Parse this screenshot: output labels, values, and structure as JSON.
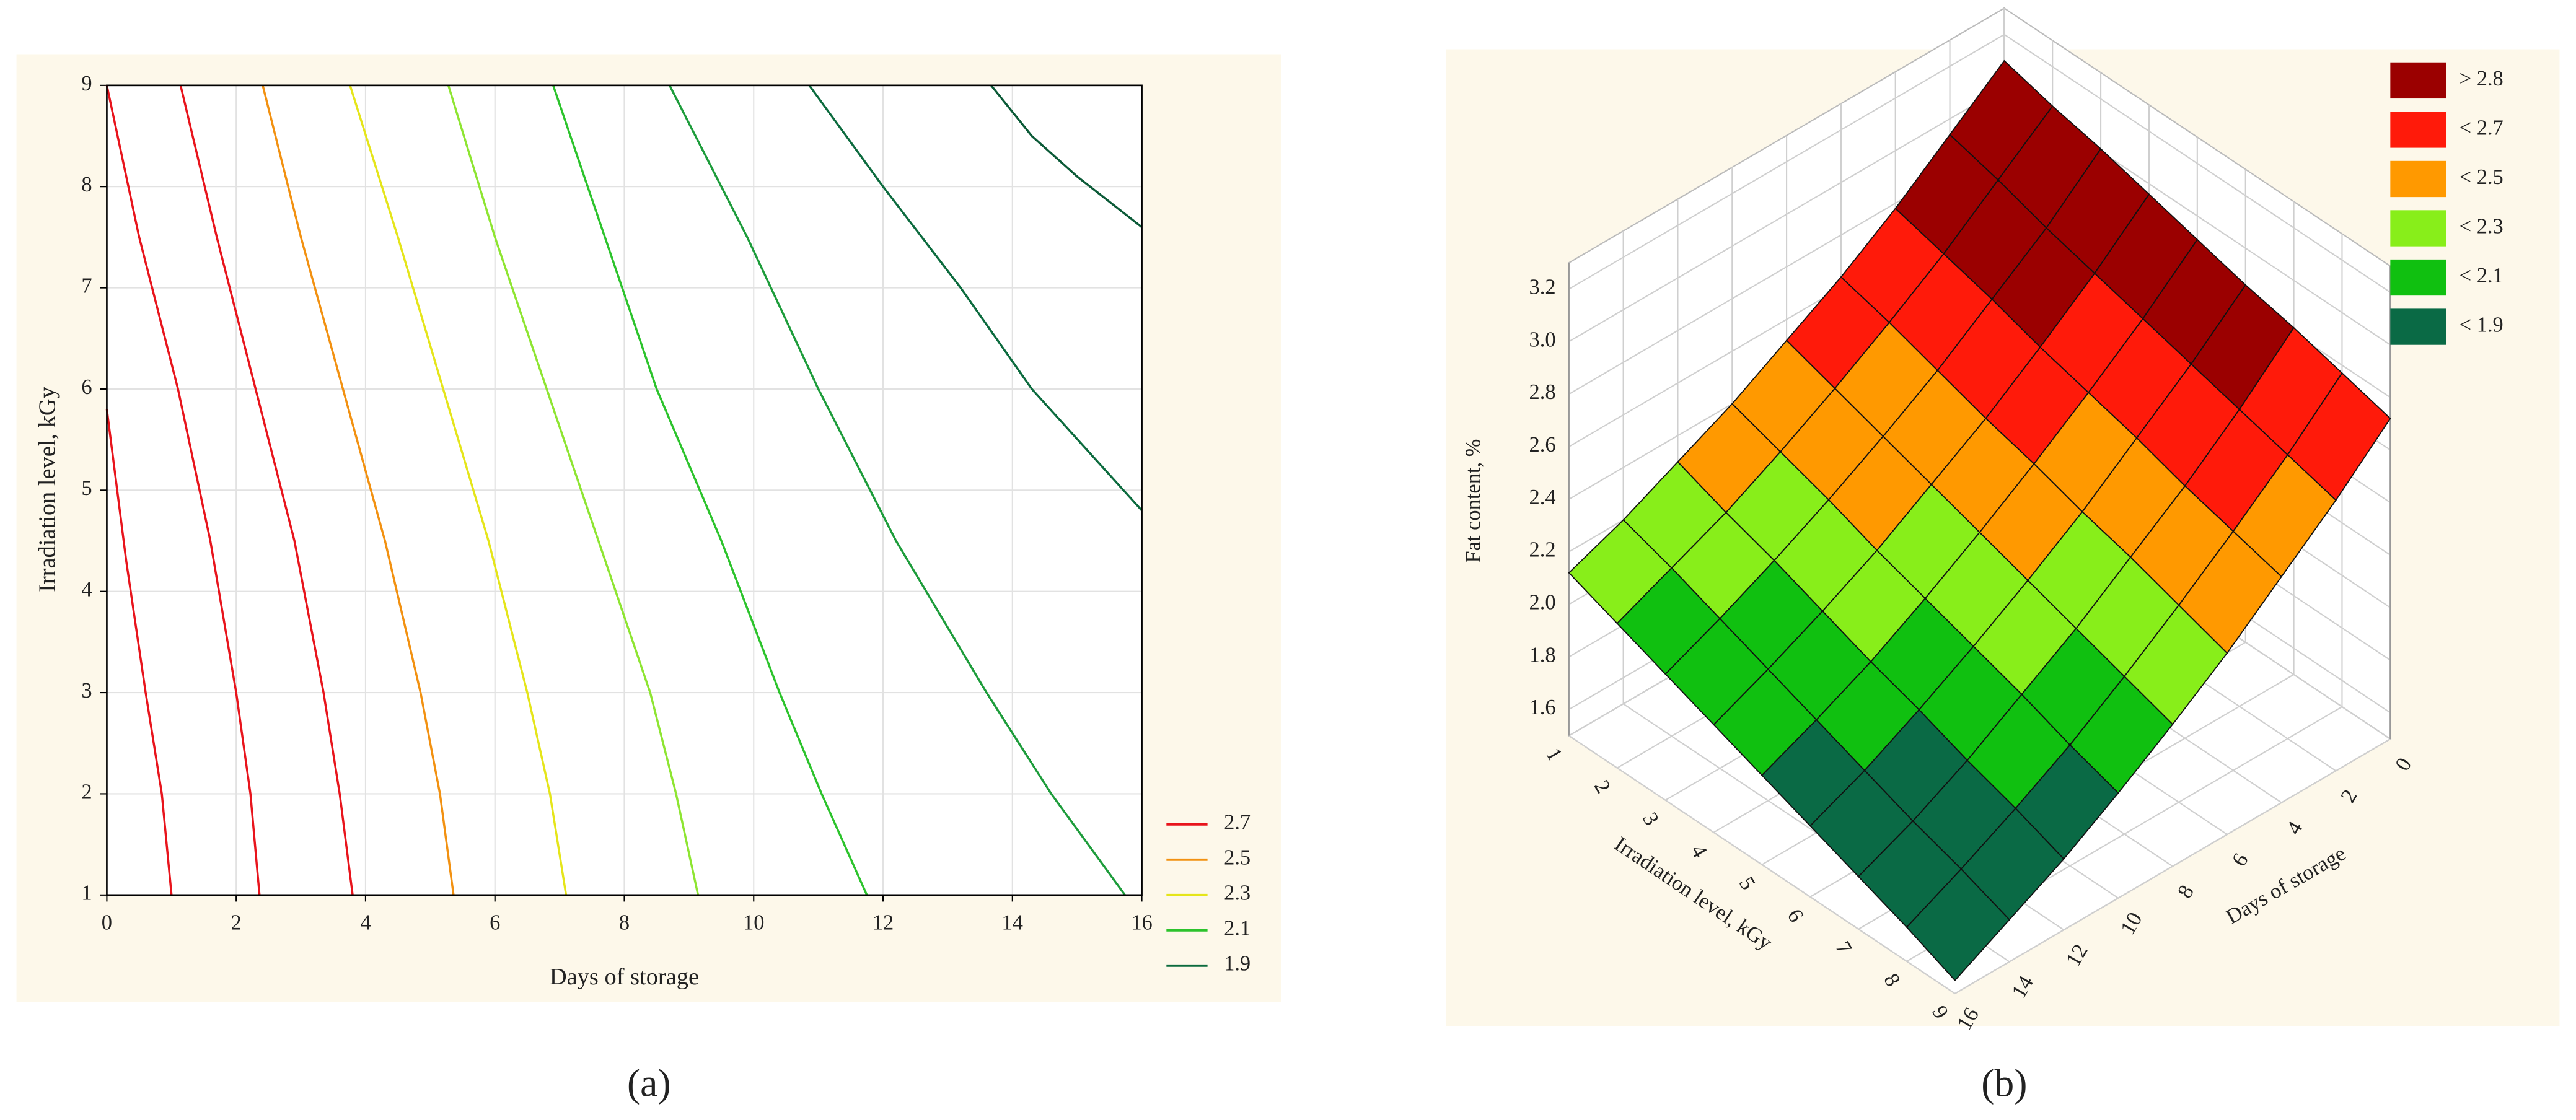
{
  "chart_data": [
    {
      "type": "contour",
      "label": "(a)",
      "xlabel": "Days of storage",
      "ylabel": "Irradiation level, kGy",
      "xlim": [
        0,
        16
      ],
      "ylim": [
        1,
        9
      ],
      "xticks": [
        0,
        2,
        4,
        6,
        8,
        10,
        12,
        14,
        16
      ],
      "yticks": [
        1,
        2,
        3,
        4,
        5,
        6,
        7,
        8,
        9
      ],
      "grid": true,
      "contours": [
        {
          "color": "#e8141c",
          "x": [
            0,
            0.3,
            0.6,
            0.85,
            1.0
          ],
          "y": [
            5.8,
            4.3,
            3,
            2,
            1
          ]
        },
        {
          "color": "#e8141c",
          "x": [
            0,
            0.5,
            1.1,
            1.6,
            2.0,
            2.22,
            2.36
          ],
          "y": [
            9,
            7.5,
            6,
            4.5,
            3,
            2,
            1
          ]
        },
        {
          "color": "#e8141c",
          "x": [
            1.14,
            1.7,
            2.3,
            2.9,
            3.35,
            3.6,
            3.8
          ],
          "y": [
            9,
            7.5,
            6,
            4.5,
            3,
            2,
            1
          ]
        },
        {
          "color": "#f29111",
          "x": [
            2.41,
            3.0,
            3.65,
            4.3,
            4.85,
            5.15,
            5.36
          ],
          "y": [
            9,
            7.5,
            6,
            4.5,
            3,
            2,
            1
          ]
        },
        {
          "color": "#e5e51a",
          "x": [
            3.76,
            4.5,
            5.2,
            5.9,
            6.5,
            6.85,
            7.1
          ],
          "y": [
            9,
            7.5,
            6,
            4.5,
            3,
            2,
            1
          ]
        },
        {
          "color": "#8ee532",
          "x": [
            5.28,
            6.0,
            6.8,
            7.6,
            8.4,
            8.8,
            9.14
          ],
          "y": [
            9,
            7.5,
            6,
            4.5,
            3,
            2,
            1
          ]
        },
        {
          "color": "#2cc32c",
          "x": [
            6.9,
            7.7,
            8.5,
            9.5,
            10.4,
            11.05,
            11.75
          ],
          "y": [
            9,
            7.5,
            6,
            4.5,
            3,
            2,
            1
          ]
        },
        {
          "color": "#1d9c3b",
          "x": [
            8.7,
            9.9,
            11.0,
            12.2,
            13.6,
            14.6,
            15.74
          ],
          "y": [
            9,
            7.5,
            6,
            4.5,
            3,
            2,
            1
          ]
        },
        {
          "color": "#0c6b3e",
          "x": [
            10.86,
            12.0,
            13.2,
            14.3,
            16
          ],
          "y": [
            9,
            8,
            7,
            6,
            4.8
          ]
        },
        {
          "color": "#0b5a37",
          "x": [
            13.67,
            14.3,
            15.0,
            16
          ],
          "y": [
            9,
            8.5,
            8.1,
            7.6
          ]
        }
      ],
      "legend": [
        {
          "label": "2.7",
          "color": "#e8141c"
        },
        {
          "label": "2.5",
          "color": "#f29111"
        },
        {
          "label": "2.3",
          "color": "#e5e51a"
        },
        {
          "label": "2.1",
          "color": "#2cc32c"
        },
        {
          "label": "1.9",
          "color": "#0c6b3e"
        }
      ]
    },
    {
      "type": "surface3d",
      "label": "(b)",
      "xlabel": "Days of storage",
      "ylabel": "Irradiation level, kGy",
      "zlabel": "Fat content, %",
      "xlim": [
        0,
        16
      ],
      "ylim": [
        1,
        9
      ],
      "zlim": [
        1.5,
        3.3
      ],
      "xticks": [
        0,
        2,
        4,
        6,
        8,
        10,
        12,
        14,
        16
      ],
      "yticks": [
        1,
        2,
        3,
        4,
        5,
        6,
        7,
        8,
        9
      ],
      "zticks": [
        1.6,
        1.8,
        {
          "value": 2,
          "label": "2.0"
        },
        2.2,
        2.4,
        2.6,
        2.8,
        {
          "value": 3,
          "label": "3.0"
        },
        3.2
      ],
      "x": [
        0,
        2,
        4,
        6,
        8,
        10,
        12,
        14,
        16
      ],
      "y": [
        1,
        2,
        3,
        4,
        5,
        6,
        7,
        8,
        9
      ],
      "z": [
        [
          3.1,
          3.05,
          3.01,
          2.96,
          2.91,
          2.86,
          2.82,
          2.77,
          2.72
        ],
        [
          2.94,
          2.89,
          2.83,
          2.78,
          2.73,
          2.68,
          2.63,
          2.58,
          2.53
        ],
        [
          2.78,
          2.73,
          2.68,
          2.62,
          2.57,
          2.52,
          2.46,
          2.41,
          2.36
        ],
        [
          2.64,
          2.59,
          2.53,
          2.47,
          2.42,
          2.36,
          2.31,
          2.25,
          2.19
        ],
        [
          2.52,
          2.46,
          2.4,
          2.34,
          2.28,
          2.22,
          2.16,
          2.1,
          2.04
        ],
        [
          2.4,
          2.34,
          2.28,
          2.21,
          2.15,
          2.09,
          2.03,
          1.96,
          1.9
        ],
        [
          2.3,
          2.23,
          2.17,
          2.1,
          2.03,
          1.97,
          1.9,
          1.84,
          1.77
        ],
        [
          2.2,
          2.14,
          2.07,
          2.0,
          1.93,
          1.86,
          1.79,
          1.73,
          1.66
        ],
        [
          2.12,
          2.05,
          1.98,
          1.91,
          1.84,
          1.77,
          1.7,
          1.63,
          1.55
        ]
      ],
      "legend": [
        {
          "value": 2.8,
          "label": "> 2.8",
          "color": "#9b0000"
        },
        {
          "value": 2.7,
          "label": "< 2.7",
          "color": "#ff1a0a"
        },
        {
          "value": 2.5,
          "label": "< 2.5",
          "color": "#ff9900"
        },
        {
          "value": 2.3,
          "label": "< 2.3",
          "color": "#88ee1a"
        },
        {
          "value": 2.1,
          "label": "< 2.1",
          "color": "#10c010"
        },
        {
          "value": 1.9,
          "label": "< 1.9",
          "color": "#0a6a45"
        }
      ]
    }
  ]
}
